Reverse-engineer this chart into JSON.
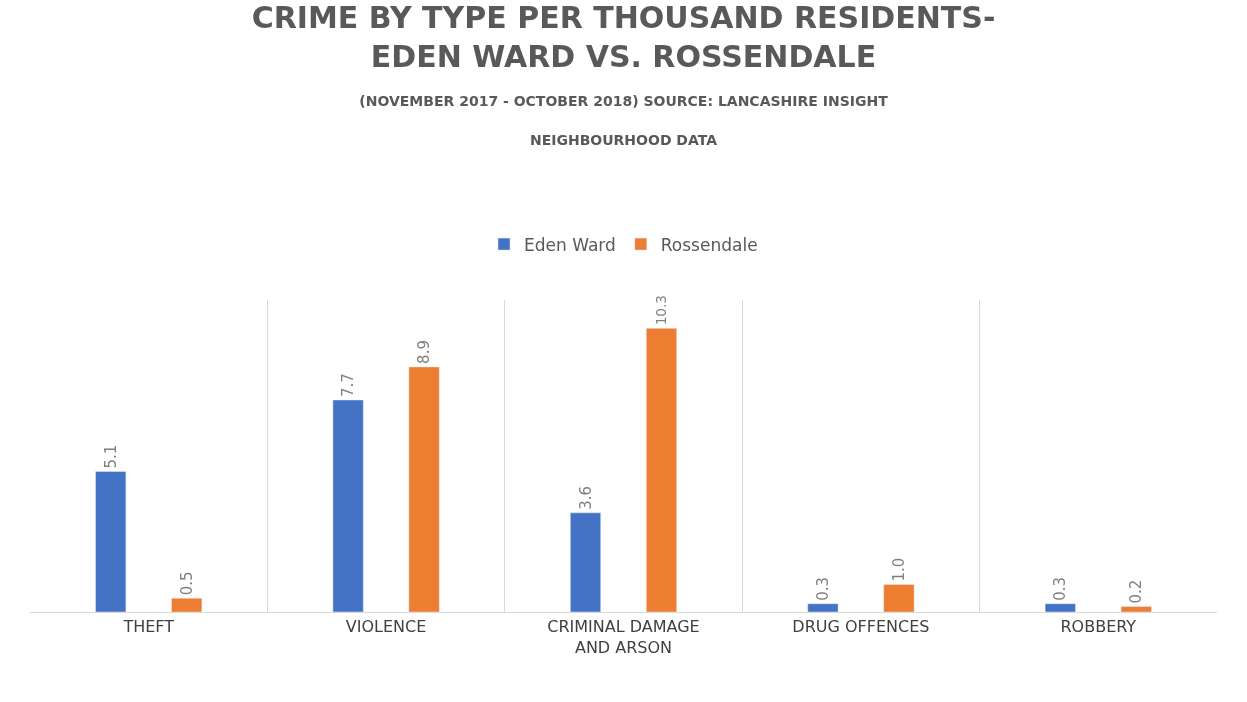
{
  "chart_data": {
    "type": "bar",
    "title": "CRIME BY TYPE PER THOUSAND RESIDENTS-\nEDEN WARD VS. ROSSENDALE",
    "subtitle": "(NOVEMBER 2017 - OCTOBER 2018) SOURCE: LANCASHIRE INSIGHT\nNEIGHBOURHOOD DATA",
    "categories": [
      "THEFT",
      "VIOLENCE",
      "CRIMINAL DAMAGE\nAND ARSON",
      "DRUG OFFENCES",
      "ROBBERY"
    ],
    "series": [
      {
        "name": "Eden Ward",
        "color": "#4472c4",
        "values": [
          5.1,
          7.7,
          3.6,
          0.3,
          0.3
        ],
        "value_labels": [
          "5.1",
          "7.7",
          "3.6",
          "0.3",
          "0.3"
        ]
      },
      {
        "name": "Rossendale",
        "color": "#ed7d31",
        "values": [
          0.5,
          8.9,
          10.3,
          1.0,
          0.2
        ],
        "value_labels": [
          "0.5",
          "8.9",
          "10.3",
          "1.0",
          "0.2"
        ]
      }
    ],
    "legend": "top",
    "grid": "x",
    "tick_labels": "x"
  }
}
